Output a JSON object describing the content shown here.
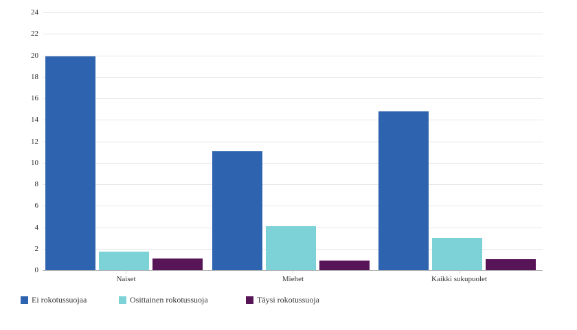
{
  "chart_data": {
    "type": "bar",
    "title": "",
    "categories": [
      "Naiset",
      "Miehet",
      "Kaikki sukupuolet"
    ],
    "series": [
      {
        "name": "Ei rokotussuojaa",
        "color": "#2E63AF",
        "values": [
          19.9,
          11.1,
          14.8
        ]
      },
      {
        "name": "Osittainen rokotussuoja",
        "color": "#7CD2D7",
        "values": [
          1.7,
          4.1,
          3.0
        ]
      },
      {
        "name": "Täysi rokotussuoja",
        "color": "#571456",
        "values": [
          1.1,
          0.9,
          1.0
        ]
      }
    ],
    "xlabel": "",
    "ylabel": "",
    "ylim": [
      0,
      24
    ],
    "yticks": [
      0,
      2,
      4,
      6,
      8,
      10,
      12,
      14,
      16,
      18,
      20,
      22,
      24
    ],
    "grid": true,
    "legend_position": "bottom-left",
    "gridline_color": "#e6e6e6",
    "axis_line_color": "#b3b3b3",
    "tick_color": "#cccccc",
    "text_color": "#333333"
  }
}
